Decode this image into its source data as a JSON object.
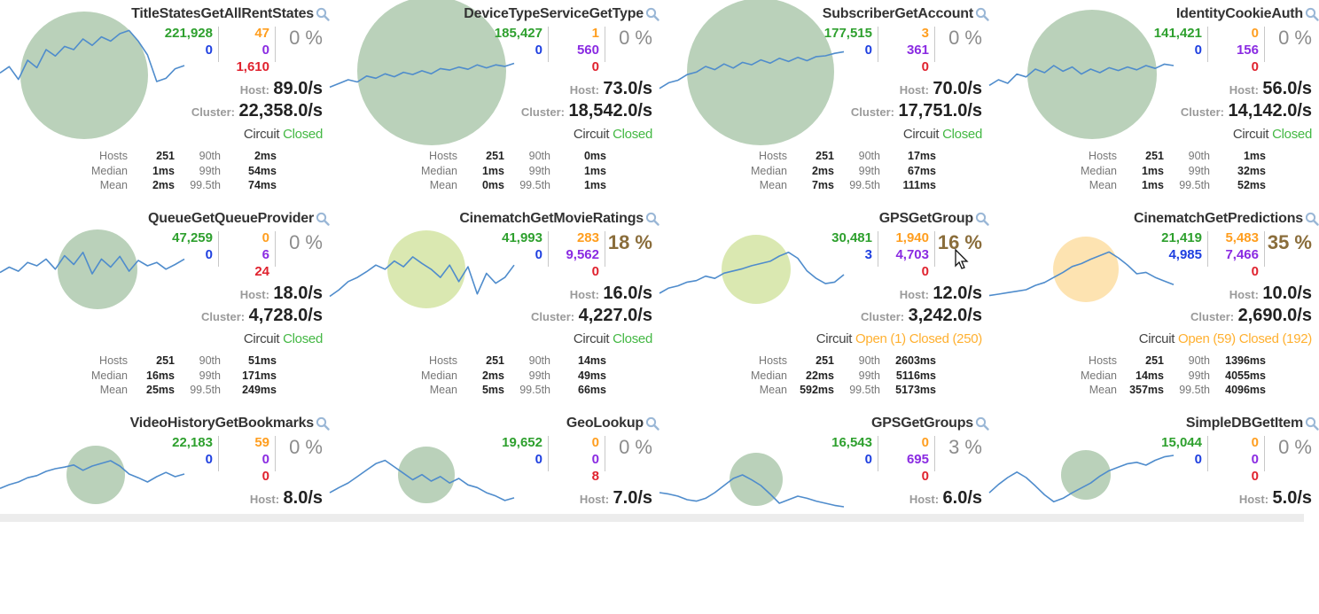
{
  "labels": {
    "host": "Host:",
    "cluster": "Cluster:",
    "circuit": "Circuit",
    "hosts": "Hosts",
    "median": "Median",
    "mean": "Mean",
    "p90": "90th",
    "p99": "99th",
    "p995": "99.5th"
  },
  "colors": {
    "success": "#2ea02e",
    "timeout": "#1e3fe0",
    "rejected": "#ff9e1f",
    "short_circuited": "#8a2be2",
    "failure": "#e0222e",
    "closed": "#44b844",
    "open": "#ffb030",
    "sparkline": "#4f8ccc",
    "bubble_green": "#b2ccb2",
    "bubble_yellowgreen": "#d6e6a8",
    "bubble_orange": "#fde0a8"
  },
  "circuits": [
    {
      "name": "TitleStatesGetAllRentStates",
      "success": "221,928",
      "timeout": "0",
      "rejected": "47",
      "short_circuited": "0",
      "failure": "1,610",
      "error_pct": "0 %",
      "host_rate": "89.0/s",
      "cluster_rate": "22,358.0/s",
      "status": "Closed",
      "status_kind": "closed",
      "hosts": "251",
      "median": "1ms",
      "mean": "2ms",
      "p90": "2ms",
      "p99": "54ms",
      "p995": "74ms",
      "bubble": "green",
      "trend": [
        0.52,
        0.46,
        0.58,
        0.4,
        0.47,
        0.3,
        0.36,
        0.27,
        0.3,
        0.2,
        0.26,
        0.18,
        0.22,
        0.15,
        0.12,
        0.22,
        0.35,
        0.6,
        0.57,
        0.48,
        0.45
      ]
    },
    {
      "name": "DeviceTypeServiceGetType",
      "success": "185,427",
      "timeout": "0",
      "rejected": "1",
      "short_circuited": "560",
      "failure": "0",
      "error_pct": "0 %",
      "host_rate": "73.0/s",
      "cluster_rate": "18,542.0/s",
      "status": "Closed",
      "status_kind": "closed",
      "hosts": "251",
      "median": "1ms",
      "mean": "0ms",
      "p90": "0ms",
      "p99": "1ms",
      "p995": "1ms",
      "bubble": "green",
      "trend": [
        0.6,
        0.55,
        0.5,
        0.53,
        0.45,
        0.48,
        0.42,
        0.46,
        0.4,
        0.43,
        0.38,
        0.42,
        0.35,
        0.37,
        0.33,
        0.36,
        0.3,
        0.34,
        0.3,
        0.32,
        0.28
      ]
    },
    {
      "name": "SubscriberGetAccount",
      "success": "177,515",
      "timeout": "0",
      "rejected": "3",
      "short_circuited": "361",
      "failure": "0",
      "error_pct": "0 %",
      "host_rate": "70.0/s",
      "cluster_rate": "17,751.0/s",
      "status": "Closed",
      "status_kind": "closed",
      "hosts": "251",
      "median": "2ms",
      "mean": "7ms",
      "p90": "17ms",
      "p99": "67ms",
      "p995": "111ms",
      "bubble": "green",
      "trend": [
        0.65,
        0.58,
        0.55,
        0.48,
        0.45,
        0.38,
        0.42,
        0.35,
        0.4,
        0.33,
        0.36,
        0.3,
        0.34,
        0.28,
        0.32,
        0.27,
        0.31,
        0.26,
        0.25,
        0.22,
        0.2
      ]
    },
    {
      "name": "IdentityCookieAuth",
      "success": "141,421",
      "timeout": "0",
      "rejected": "0",
      "short_circuited": "156",
      "failure": "0",
      "error_pct": "0 %",
      "host_rate": "56.0/s",
      "cluster_rate": "14,142.0/s",
      "status": "Closed",
      "status_kind": "closed",
      "hosts": "251",
      "median": "1ms",
      "mean": "1ms",
      "p90": "1ms",
      "p99": "32ms",
      "p995": "52ms",
      "bubble": "green",
      "trend": [
        0.58,
        0.5,
        0.55,
        0.42,
        0.46,
        0.35,
        0.4,
        0.3,
        0.38,
        0.32,
        0.42,
        0.35,
        0.4,
        0.33,
        0.37,
        0.32,
        0.36,
        0.3,
        0.34,
        0.28,
        0.3
      ]
    },
    {
      "name": "QueueGetQueueProvider",
      "success": "47,259",
      "timeout": "0",
      "rejected": "0",
      "short_circuited": "6",
      "failure": "24",
      "error_pct": "0 %",
      "host_rate": "18.0/s",
      "cluster_rate": "4,728.0/s",
      "status": "Closed",
      "status_kind": "closed",
      "hosts": "251",
      "median": "16ms",
      "mean": "25ms",
      "p90": "51ms",
      "p99": "171ms",
      "p995": "249ms",
      "bubble": "green",
      "trend": [
        0.6,
        0.52,
        0.58,
        0.45,
        0.5,
        0.4,
        0.55,
        0.35,
        0.48,
        0.3,
        0.62,
        0.4,
        0.52,
        0.36,
        0.58,
        0.42,
        0.5,
        0.45,
        0.55,
        0.48,
        0.4
      ]
    },
    {
      "name": "CinematchGetMovieRatings",
      "success": "41,993",
      "timeout": "0",
      "rejected": "283",
      "short_circuited": "9,562",
      "failure": "0",
      "error_pct": "18 %",
      "error_hot": true,
      "host_rate": "16.0/s",
      "cluster_rate": "4,227.0/s",
      "status": "Closed",
      "status_kind": "closed",
      "hosts": "251",
      "median": "2ms",
      "mean": "5ms",
      "p90": "14ms",
      "p99": "49ms",
      "p995": "66ms",
      "bubble": "yellowgreen",
      "trend": [
        0.78,
        0.7,
        0.6,
        0.55,
        0.48,
        0.4,
        0.45,
        0.35,
        0.42,
        0.3,
        0.38,
        0.45,
        0.55,
        0.4,
        0.6,
        0.42,
        0.75,
        0.5,
        0.62,
        0.55,
        0.4
      ]
    },
    {
      "name": "GPSGetGroup",
      "success": "30,481",
      "timeout": "3",
      "rejected": "1,940",
      "short_circuited": "4,703",
      "failure": "0",
      "error_pct": "16 %",
      "error_hot": true,
      "host_rate": "12.0/s",
      "cluster_rate": "3,242.0/s",
      "status": "",
      "status_kind": "open",
      "status_open": "Open (1)",
      "status_closed": "Closed (250)",
      "hosts": "251",
      "median": "22ms",
      "mean": "592ms",
      "p90": "2603ms",
      "p99": "5116ms",
      "p995": "5173ms",
      "bubble": "yellowgreen",
      "trend": [
        0.75,
        0.68,
        0.65,
        0.6,
        0.58,
        0.52,
        0.55,
        0.48,
        0.45,
        0.42,
        0.38,
        0.35,
        0.32,
        0.25,
        0.2,
        0.28,
        0.45,
        0.55,
        0.62,
        0.6,
        0.5
      ]
    },
    {
      "name": "CinematchGetPredictions",
      "success": "21,419",
      "timeout": "4,985",
      "rejected": "5,483",
      "short_circuited": "7,466",
      "failure": "0",
      "error_pct": "35 %",
      "error_hot": true,
      "host_rate": "10.0/s",
      "cluster_rate": "2,690.0/s",
      "status": "",
      "status_kind": "open",
      "status_open": "Open (59)",
      "status_closed": "Closed (192)",
      "hosts": "251",
      "median": "14ms",
      "mean": "357ms",
      "p90": "1396ms",
      "p99": "4055ms",
      "p995": "4096ms",
      "bubble": "orange",
      "trend": [
        0.8,
        0.78,
        0.76,
        0.74,
        0.72,
        0.66,
        0.62,
        0.55,
        0.48,
        0.4,
        0.36,
        0.3,
        0.25,
        0.2,
        0.28,
        0.38,
        0.5,
        0.48,
        0.55,
        0.6,
        0.65
      ]
    },
    {
      "name": "VideoHistoryGetBookmarks",
      "success": "22,183",
      "timeout": "0",
      "rejected": "59",
      "short_circuited": "0",
      "failure": "0",
      "error_pct": "0 %",
      "host_rate": "8.0/s",
      "cluster_rate": "",
      "status": "",
      "status_kind": "none",
      "hosts": "",
      "median": "",
      "mean": "",
      "p90": "",
      "p99": "",
      "p995": "",
      "bubble": "green",
      "trend": [
        0.82,
        0.75,
        0.7,
        0.62,
        0.58,
        0.5,
        0.45,
        0.42,
        0.38,
        0.48,
        0.4,
        0.35,
        0.3,
        0.4,
        0.55,
        0.62,
        0.7,
        0.6,
        0.52,
        0.6,
        0.55
      ]
    },
    {
      "name": "GeoLookup",
      "success": "19,652",
      "timeout": "0",
      "rejected": "0",
      "short_circuited": "0",
      "failure": "8",
      "error_pct": "0 %",
      "host_rate": "7.0/s",
      "cluster_rate": "",
      "status": "",
      "status_kind": "none",
      "hosts": "",
      "median": "",
      "mean": "",
      "p90": "",
      "p99": "",
      "p995": "",
      "bubble": "green",
      "trend": [
        0.7,
        0.62,
        0.55,
        0.45,
        0.35,
        0.25,
        0.2,
        0.3,
        0.4,
        0.5,
        0.42,
        0.52,
        0.45,
        0.55,
        0.48,
        0.58,
        0.62,
        0.7,
        0.75,
        0.82,
        0.78
      ]
    },
    {
      "name": "GPSGetGroups",
      "success": "16,543",
      "timeout": "0",
      "rejected": "0",
      "short_circuited": "695",
      "failure": "0",
      "error_pct": "3 %",
      "host_rate": "6.0/s",
      "cluster_rate": "",
      "status": "",
      "status_kind": "none",
      "hosts": "",
      "median": "",
      "mean": "",
      "p90": "",
      "p99": "",
      "p995": "",
      "bubble": "green",
      "trend": [
        0.7,
        0.72,
        0.75,
        0.8,
        0.82,
        0.78,
        0.7,
        0.6,
        0.5,
        0.45,
        0.52,
        0.6,
        0.72,
        0.85,
        0.8,
        0.75,
        0.78,
        0.82,
        0.85,
        0.88,
        0.9
      ]
    },
    {
      "name": "SimpleDBGetItem",
      "success": "15,044",
      "timeout": "0",
      "rejected": "0",
      "short_circuited": "0",
      "failure": "0",
      "error_pct": "0 %",
      "host_rate": "5.0/s",
      "cluster_rate": "",
      "status": "",
      "status_kind": "none",
      "hosts": "",
      "median": "",
      "mean": "",
      "p90": "",
      "p99": "",
      "p995": "",
      "bubble": "green",
      "trend": [
        0.72,
        0.6,
        0.5,
        0.42,
        0.5,
        0.62,
        0.75,
        0.85,
        0.8,
        0.72,
        0.65,
        0.58,
        0.48,
        0.4,
        0.35,
        0.3,
        0.28,
        0.32,
        0.25,
        0.2,
        0.18
      ]
    }
  ]
}
